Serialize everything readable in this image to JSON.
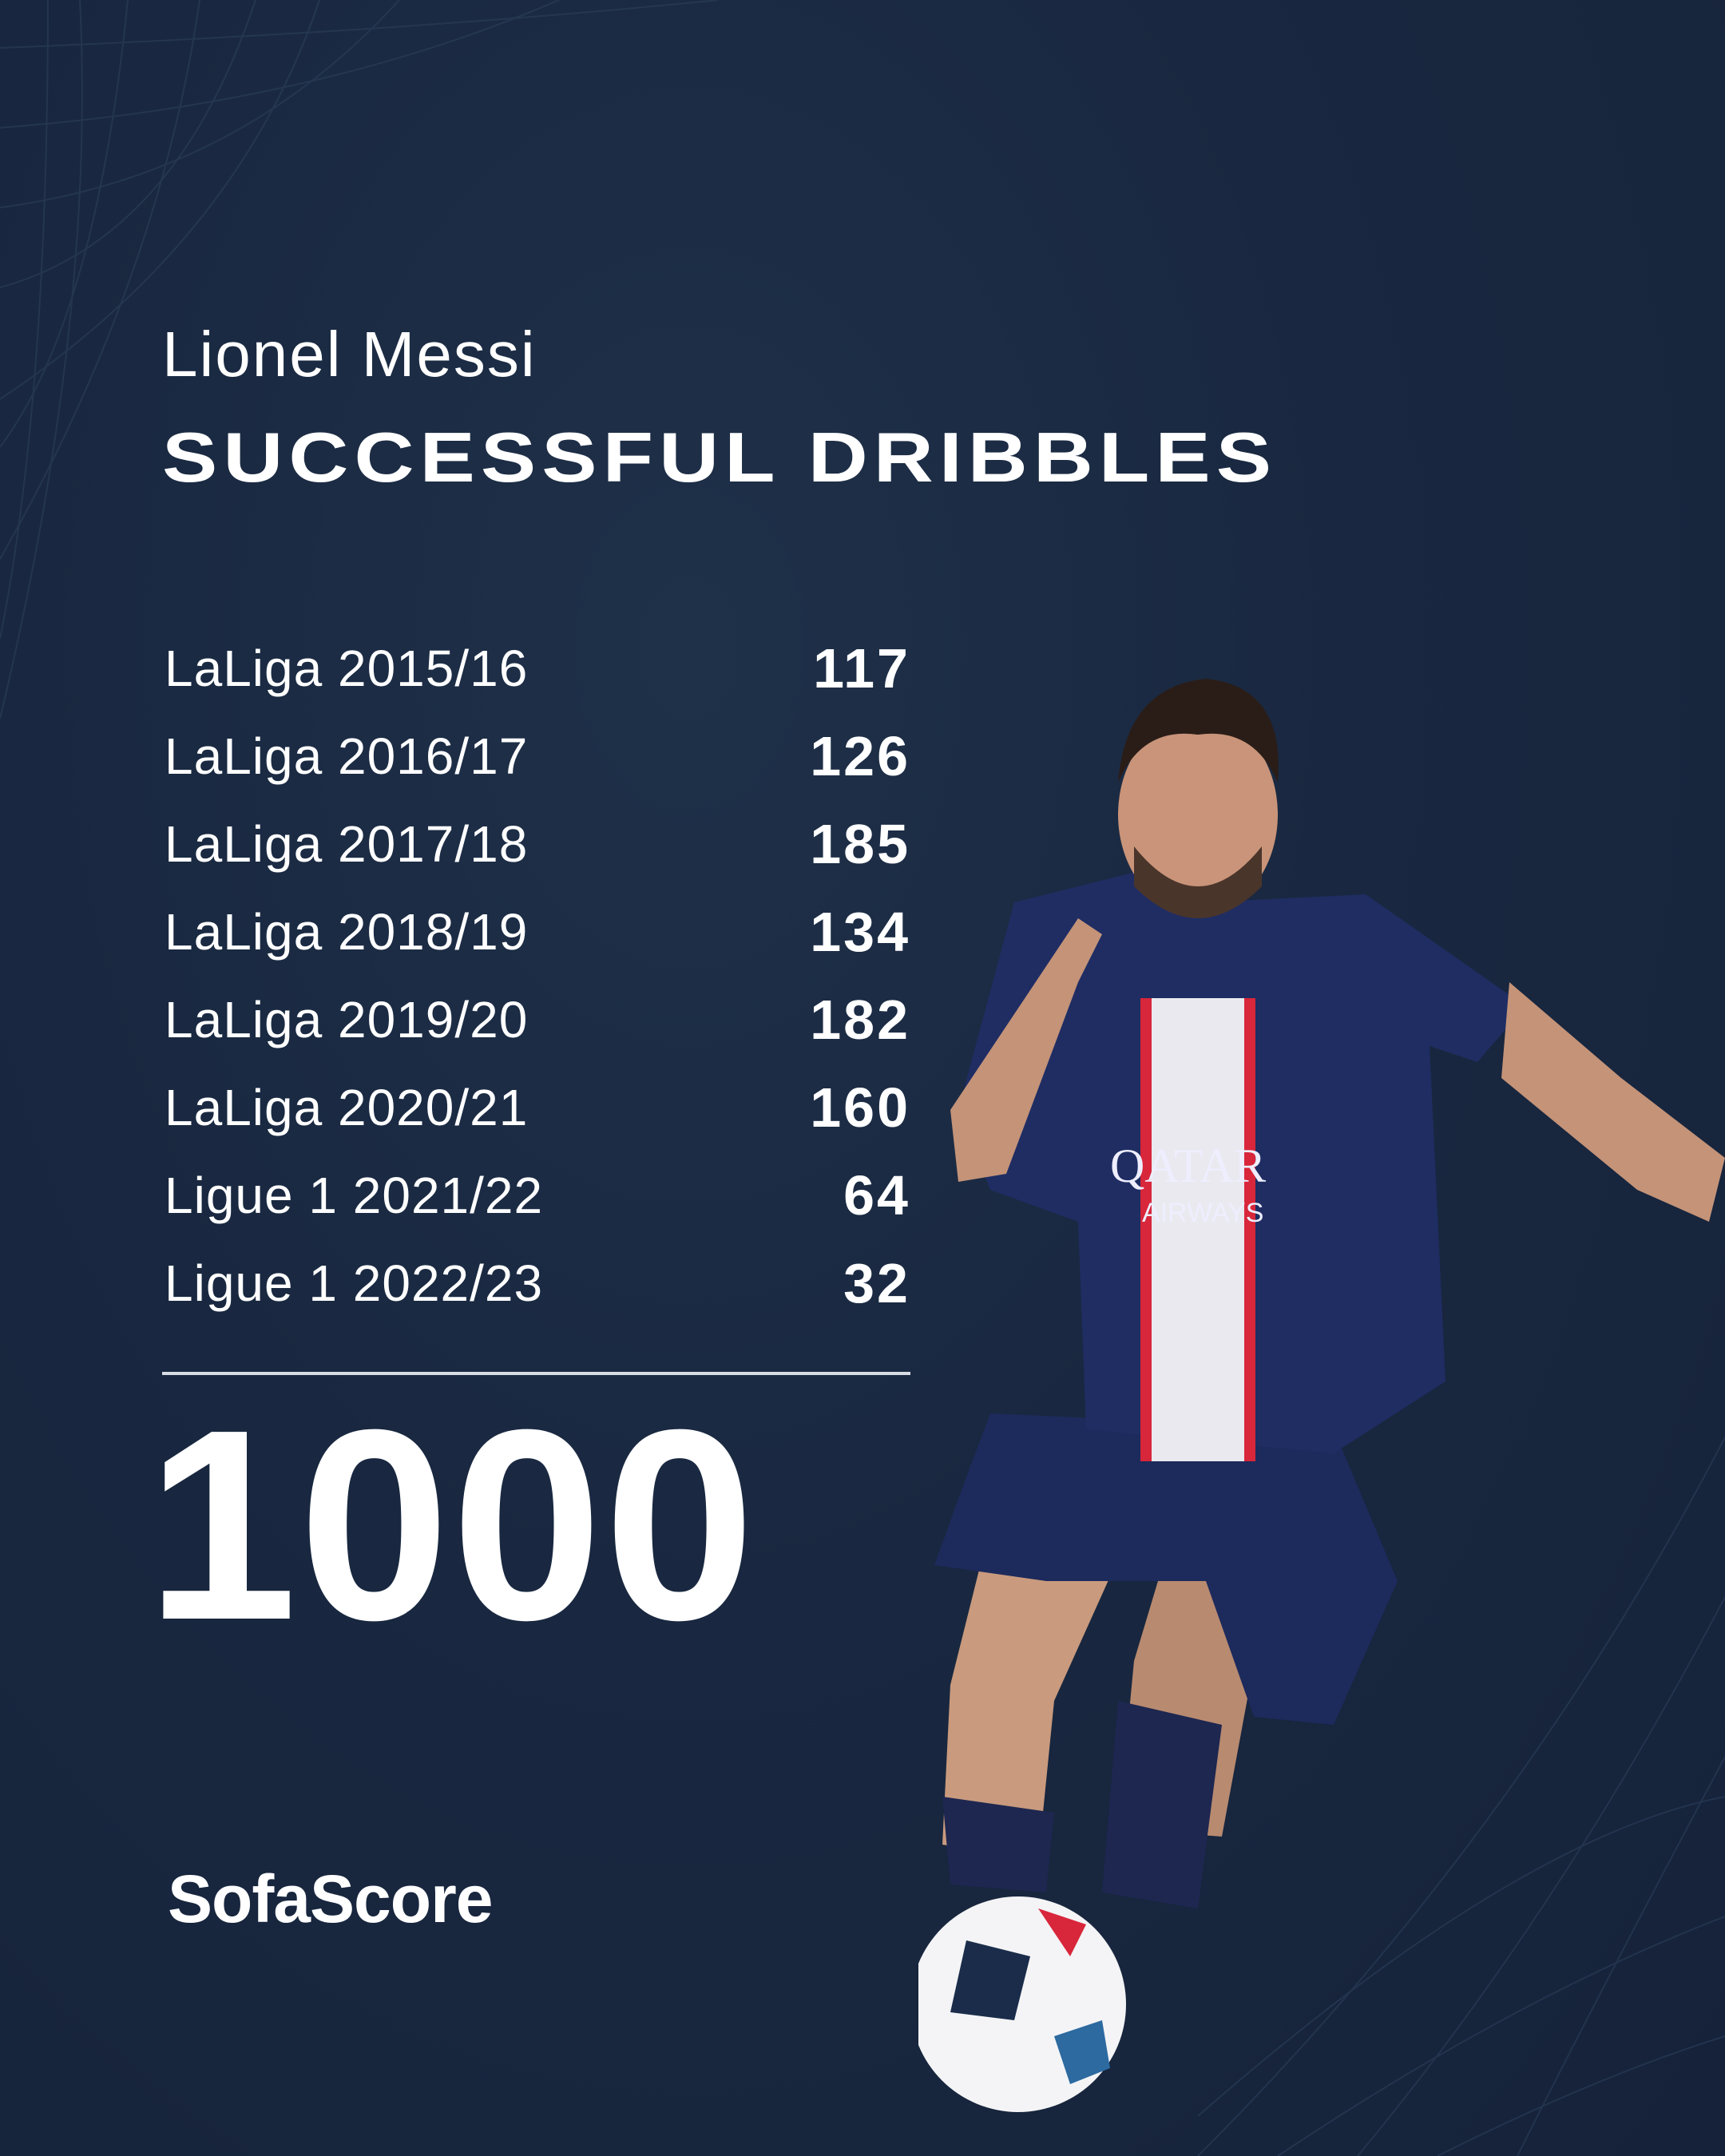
{
  "player_name": "Lionel Messi",
  "stat_title": "SUCCESSFUL DRIBBLES",
  "seasons": [
    {
      "label": "LaLiga 2015/16",
      "value": "117"
    },
    {
      "label": "LaLiga 2016/17",
      "value": "126"
    },
    {
      "label": "LaLiga 2017/18",
      "value": "185"
    },
    {
      "label": "LaLiga 2018/19",
      "value": "134"
    },
    {
      "label": "LaLiga 2019/20",
      "value": "182"
    },
    {
      "label": "LaLiga 2020/21",
      "value": "160"
    },
    {
      "label": "Ligue 1 2021/22",
      "value": "64"
    },
    {
      "label": "Ligue 1 2022/23",
      "value": "32"
    }
  ],
  "total": "1000",
  "brand": "SofaScore",
  "colors": {
    "background": "#182538",
    "text": "#ffffff",
    "jersey": "#1e2a5a",
    "stripe_red": "#d8263a"
  }
}
